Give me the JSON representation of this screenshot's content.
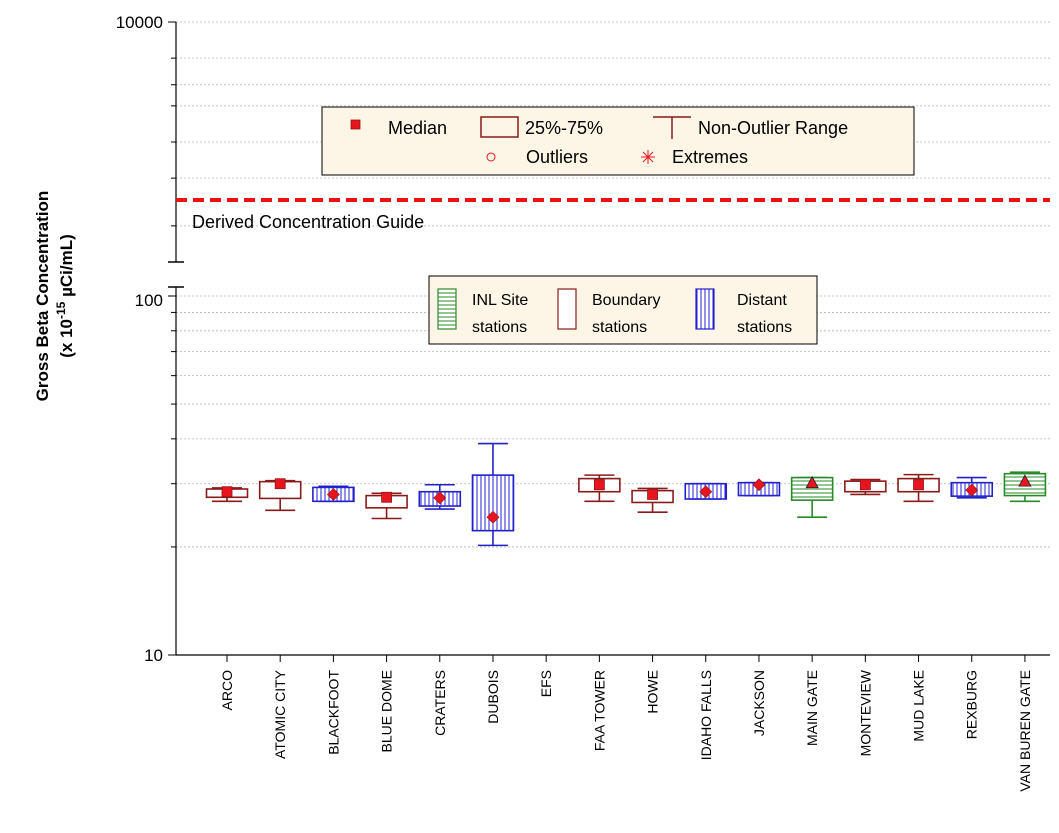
{
  "chart_data": {
    "type": "boxplot",
    "y_scale": "log",
    "ylim": [
      10,
      10000
    ],
    "ytick_labels": [
      "10000",
      "100",
      "10"
    ],
    "ylabel_line1": "Gross Beta Concentration",
    "ylabel_line2": "(x 10",
    "ylabel_exp": "-15",
    "ylabel_unit": " µCi/mL)",
    "reference_line": {
      "value": 480,
      "label": "Derived Concentration Guide",
      "color": "#ee1111"
    },
    "legend_stats": {
      "median": "Median",
      "box": "25%-75%",
      "range": "Non-Outlier Range",
      "outliers": "Outliers",
      "extremes": "Extremes"
    },
    "legend_groups": [
      {
        "line1": "INL Site",
        "line2": "stations",
        "color": "#2a8a2a",
        "pattern": "horizontal"
      },
      {
        "line1": "Boundary",
        "line2": "stations",
        "color": "#8b1a1a",
        "pattern": "none"
      },
      {
        "line1": "Distant",
        "line2": "stations",
        "color": "#2222cc",
        "pattern": "vertical"
      }
    ],
    "stations": [
      {
        "name": "ARCO",
        "group": "boundary",
        "marker": "square",
        "median": 28.5,
        "q1": 27.5,
        "q3": 29,
        "low": 26.8,
        "high": 29.2
      },
      {
        "name": "ATOMIC CITY",
        "group": "boundary",
        "marker": "square",
        "median": 30,
        "q1": 27.3,
        "q3": 30.4,
        "low": 25.3,
        "high": 30.6
      },
      {
        "name": "BLACKFOOT",
        "group": "distant",
        "marker": "diamond",
        "median": 28,
        "q1": 26.8,
        "q3": 29.3,
        "low": 26.8,
        "high": 29.5
      },
      {
        "name": "BLUE DOME",
        "group": "boundary",
        "marker": "square",
        "median": 27.5,
        "q1": 25.7,
        "q3": 27.8,
        "low": 24,
        "high": 28.2
      },
      {
        "name": "CRATERS",
        "group": "distant",
        "marker": "diamond",
        "median": 27.4,
        "q1": 26,
        "q3": 28.5,
        "low": 25.5,
        "high": 29.8
      },
      {
        "name": "DUBOIS",
        "group": "distant",
        "marker": "diamond",
        "median": 24.2,
        "q1": 22.2,
        "q3": 31.7,
        "low": 20.2,
        "high": 38.8
      },
      {
        "name": "EFS",
        "group": "none",
        "marker": "none"
      },
      {
        "name": "FAA TOWER",
        "group": "boundary",
        "marker": "square",
        "median": 29.8,
        "q1": 28.5,
        "q3": 31,
        "low": 26.8,
        "high": 31.7
      },
      {
        "name": "HOWE",
        "group": "boundary",
        "marker": "square",
        "median": 28,
        "q1": 26.6,
        "q3": 28.7,
        "low": 25,
        "high": 29.1
      },
      {
        "name": "IDAHO FALLS",
        "group": "distant",
        "marker": "diamond",
        "median": 28.5,
        "q1": 27.2,
        "q3": 30,
        "low": 27.2,
        "high": 30
      },
      {
        "name": "JACKSON",
        "group": "distant",
        "marker": "diamond",
        "median": 29.8,
        "q1": 27.8,
        "q3": 30.2,
        "low": 27.8,
        "high": 30.2
      },
      {
        "name": "MAIN GATE",
        "group": "inl",
        "marker": "triangle",
        "median": 30.2,
        "q1": 27,
        "q3": 31.2,
        "low": 24.2,
        "high": 31.2
      },
      {
        "name": "MONTEVIEW",
        "group": "boundary",
        "marker": "square",
        "median": 29.8,
        "q1": 28.5,
        "q3": 30.5,
        "low": 28,
        "high": 30.8
      },
      {
        "name": "MUD LAKE",
        "group": "boundary",
        "marker": "square",
        "median": 29.8,
        "q1": 28.5,
        "q3": 31,
        "low": 26.8,
        "high": 31.8
      },
      {
        "name": "REXBURG",
        "group": "distant",
        "marker": "diamond",
        "median": 28.8,
        "q1": 27.7,
        "q3": 30.2,
        "low": 27.4,
        "high": 31.2
      },
      {
        "name": "VAN BUREN GATE",
        "group": "inl",
        "marker": "triangle",
        "median": 30.5,
        "q1": 27.8,
        "q3": 32,
        "low": 26.8,
        "high": 32.3
      }
    ],
    "colors": {
      "inl": "#2a8a2a",
      "boundary": "#8b1a1a",
      "distant": "#2222cc",
      "marker": "#e8141e",
      "legend_bg": "#fdf5e6"
    }
  }
}
